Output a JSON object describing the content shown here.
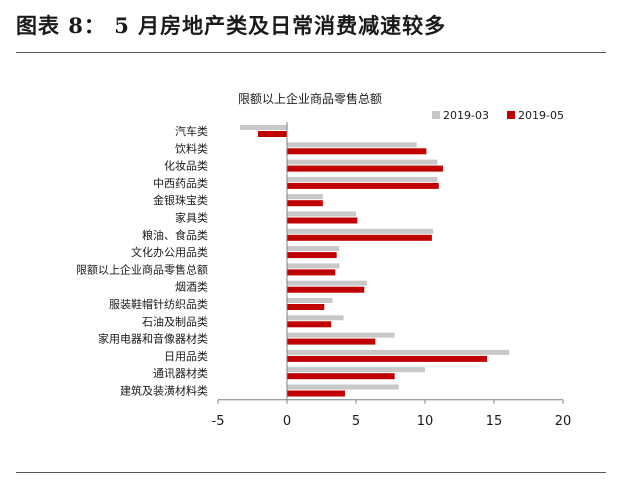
{
  "page": {
    "title": "图表 8： 5 月房地产类及日常消费减速较多"
  },
  "colors": {
    "series_2019_03": "#c8c8c8",
    "series_2019_05": "#c00000",
    "axis": "#7f7f7f"
  },
  "chart_data": {
    "type": "bar",
    "orientation": "horizontal",
    "title": "限额以上企业商品零售总额",
    "categories": [
      "汽车类",
      "饮料类",
      "化妆品类",
      "中西药品类",
      "金银珠宝类",
      "家具类",
      "粮油、食品类",
      "文化办公用品类",
      "限额以上企业商品零售总额",
      "烟酒类",
      "服装鞋帽针纺织品类",
      "石油及制品类",
      "家用电器和音像器材类",
      "日用品类",
      "通讯器材类",
      "建筑及装潢材料类"
    ],
    "series": [
      {
        "name": "2019-03",
        "values": [
          -3.4,
          9.4,
          10.9,
          10.9,
          2.6,
          5.0,
          10.6,
          3.8,
          3.8,
          5.8,
          3.3,
          4.1,
          7.8,
          16.1,
          10.0,
          8.1
        ]
      },
      {
        "name": "2019-05",
        "values": [
          -2.1,
          10.1,
          11.3,
          11.0,
          2.6,
          5.1,
          10.5,
          3.6,
          3.5,
          5.6,
          2.7,
          3.2,
          6.4,
          14.5,
          7.8,
          4.2
        ]
      }
    ],
    "xlim": [
      -5,
      20
    ],
    "xticks": [
      -5,
      0,
      5,
      10,
      15,
      20
    ],
    "legend_position": "top-right",
    "grid": false
  }
}
